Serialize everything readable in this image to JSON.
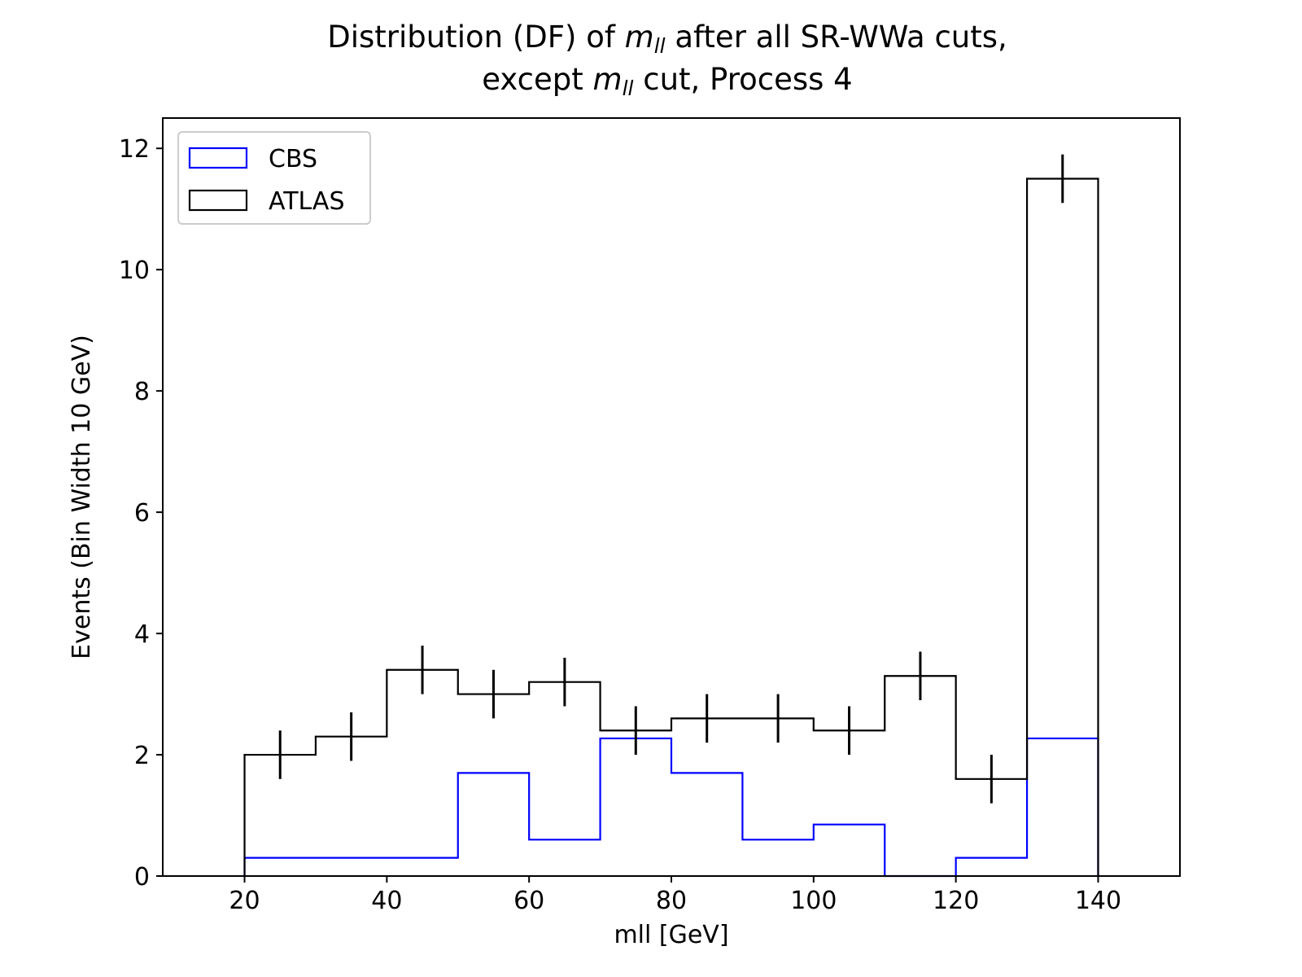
{
  "chart_data": {
    "type": "histogram-step",
    "title": {
      "line1": [
        "Distribution (DF) of ",
        "m",
        "ll",
        " after all SR-WWa cuts,"
      ],
      "line2": [
        "except ",
        "m",
        "ll",
        " cut, Process 4"
      ]
    },
    "xlabel": "mll [GeV]",
    "ylabel": "Events (Bin Width 10 GeV)",
    "xlim": [
      8.5,
      151.5
    ],
    "ylim": [
      0,
      12.5
    ],
    "xticks": [
      20,
      40,
      60,
      80,
      100,
      120,
      140
    ],
    "yticks": [
      0,
      2,
      4,
      6,
      8,
      10,
      12
    ],
    "bin_edges": [
      20,
      30,
      40,
      50,
      60,
      70,
      80,
      90,
      100,
      110,
      120,
      130,
      140
    ],
    "legend_position": "upper-left",
    "series": [
      {
        "name": "CBS",
        "color": "#0000ff",
        "values": [
          0.3,
          0.3,
          0.3,
          1.7,
          0.6,
          2.27,
          1.7,
          0.6,
          0.85,
          0.0,
          0.3,
          2.27
        ]
      },
      {
        "name": "ATLAS",
        "color": "#000000",
        "values": [
          2.0,
          2.3,
          3.4,
          3.0,
          3.2,
          2.4,
          2.6,
          2.6,
          2.4,
          3.3,
          1.6,
          11.5
        ],
        "errors": [
          0.4,
          0.4,
          0.4,
          0.4,
          0.4,
          0.4,
          0.4,
          0.4,
          0.4,
          0.4,
          0.4,
          0.4
        ]
      }
    ]
  }
}
